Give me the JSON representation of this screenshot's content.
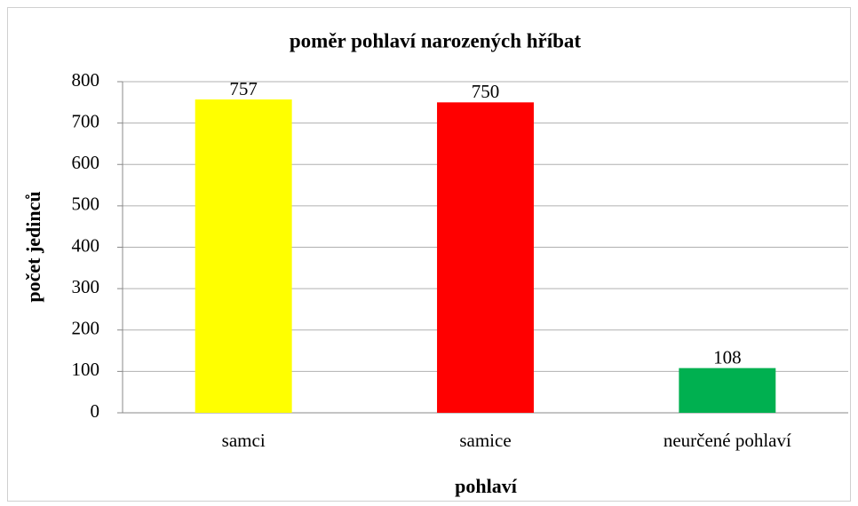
{
  "chart_data": {
    "type": "bar",
    "title": "poměr pohlaví narozených hříbat",
    "x_label": "pohlaví",
    "y_label": "počet jedinců",
    "categories": [
      "samci",
      "samice",
      "neurčené pohlaví"
    ],
    "values": [
      757,
      750,
      108
    ],
    "colors": [
      "#ffff00",
      "#ff0000",
      "#00b050"
    ],
    "ylim": [
      0,
      800
    ],
    "yticks": [
      0,
      100,
      200,
      300,
      400,
      500,
      600,
      700,
      800
    ],
    "grid": true
  }
}
